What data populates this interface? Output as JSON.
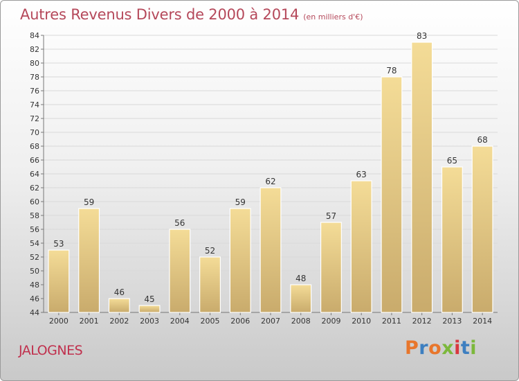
{
  "header": {
    "title": "Autres Revenus Divers de 2000 à 2014",
    "unit": "(en milliers d'€)"
  },
  "footer": {
    "place": "JALOGNES",
    "brand": "Proxiti",
    "brand_colors": [
      "#e8762b",
      "#3d7fc0",
      "#e8762b",
      "#7cb83b",
      "#d8373f",
      "#3d7fc0",
      "#7cb83b"
    ]
  },
  "colors": {
    "accent": "#b5485a",
    "bar_top": "#f4dc97",
    "bar_bottom": "#c9ab6c"
  },
  "chart_data": {
    "type": "bar",
    "categories": [
      "2000",
      "2001",
      "2002",
      "2003",
      "2004",
      "2005",
      "2006",
      "2007",
      "2008",
      "2009",
      "2010",
      "2011",
      "2012",
      "2013",
      "2014"
    ],
    "values": [
      53,
      59,
      46,
      45,
      56,
      52,
      59,
      62,
      48,
      57,
      63,
      78,
      83,
      65,
      68
    ],
    "title": "Autres Revenus Divers de 2000 à 2014",
    "xlabel": "",
    "ylabel": "",
    "ylim": [
      44,
      84
    ],
    "yticks": [
      44,
      46,
      48,
      50,
      52,
      54,
      56,
      58,
      60,
      62,
      64,
      66,
      68,
      70,
      72,
      74,
      76,
      78,
      80,
      82,
      84
    ],
    "grid": true,
    "data_labels": true
  }
}
